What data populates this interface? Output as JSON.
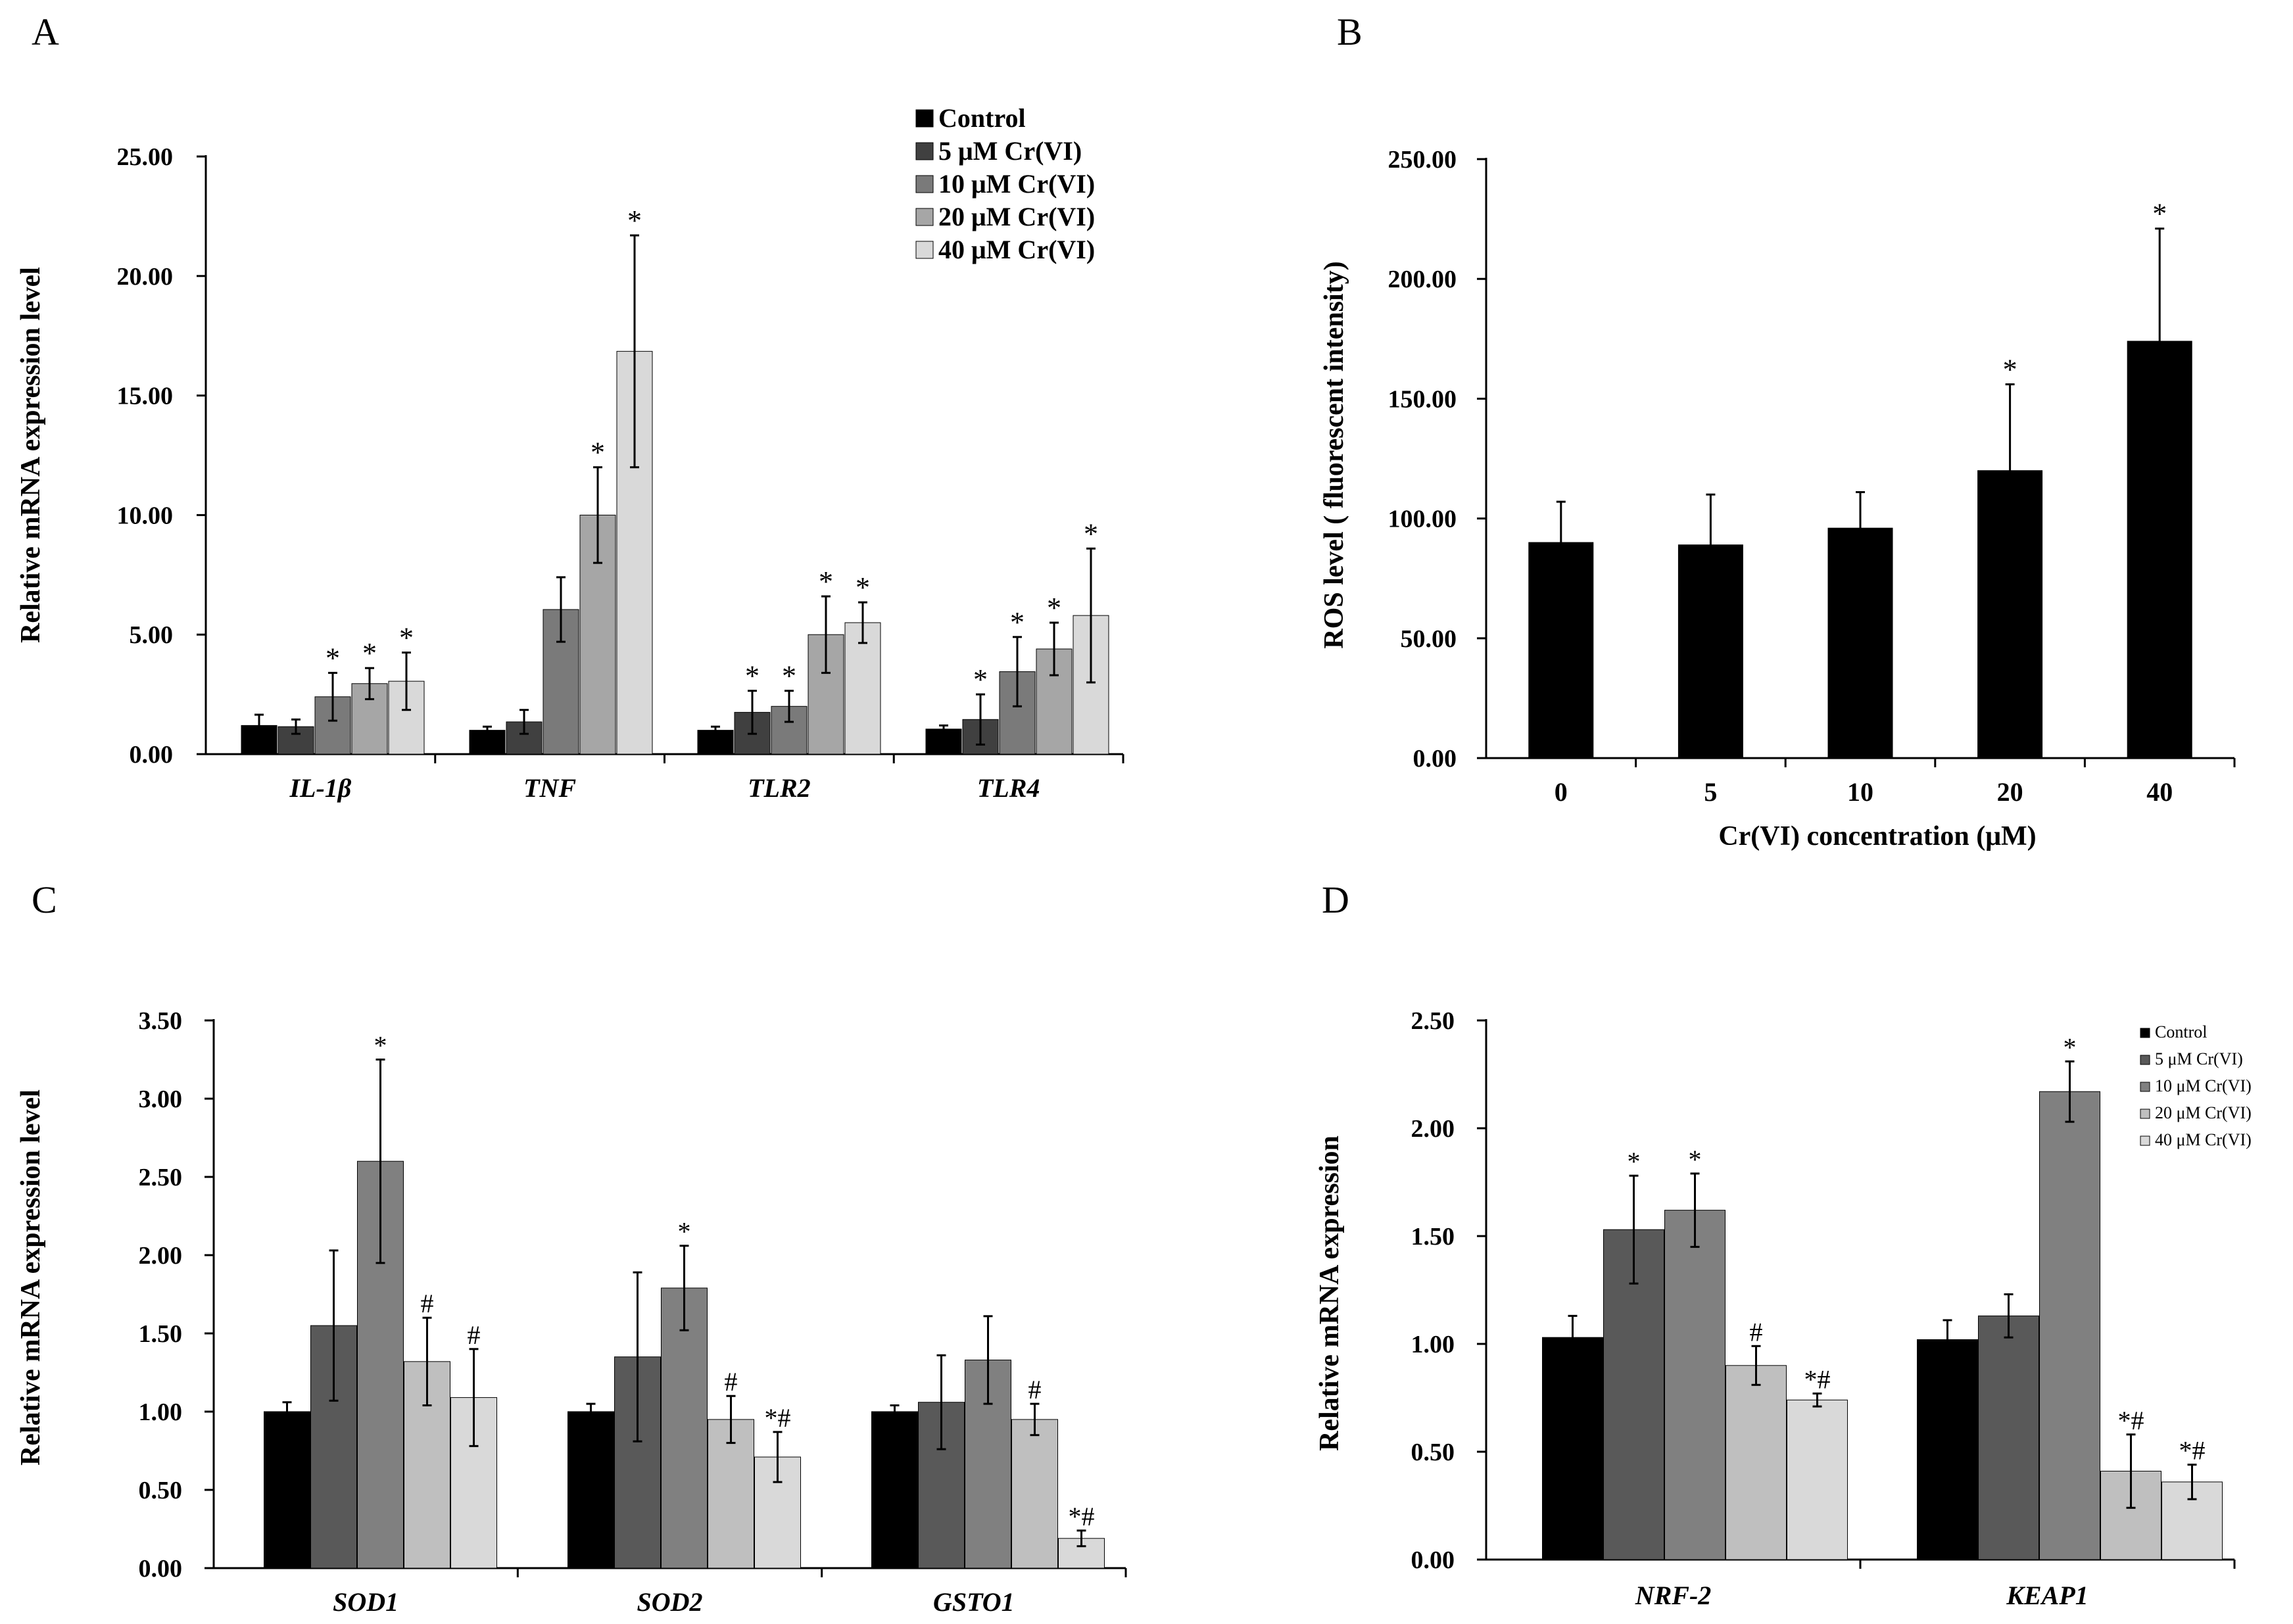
{
  "panels": [
    "A",
    "B",
    "C",
    "D"
  ],
  "chart_data": [
    {
      "panel": "A",
      "type": "bar",
      "title": "",
      "xlabel": "",
      "ylabel": "Relative mRNA expression level",
      "ylim": [
        0,
        25
      ],
      "yticks": [
        "0.00",
        "5.00",
        "10.00",
        "15.00",
        "20.00",
        "25.00"
      ],
      "categories": [
        "IL-1β",
        "TNF",
        "TLR2",
        "TLR4"
      ],
      "legend_position": "top-right",
      "series": [
        {
          "name": "Control",
          "color": "#000000",
          "values": [
            1.2,
            1.0,
            1.0,
            1.05
          ],
          "errors": [
            0.45,
            0.15,
            0.15,
            0.15
          ],
          "marks": [
            "",
            "",
            "",
            ""
          ]
        },
        {
          "name": "5 μM Cr(VI)",
          "color": "#404040",
          "values": [
            1.15,
            1.35,
            1.75,
            1.45
          ],
          "errors": [
            0.3,
            0.5,
            0.9,
            1.05
          ],
          "marks": [
            "",
            "",
            "*",
            "*"
          ]
        },
        {
          "name": "10 μM Cr(VI)",
          "color": "#7a7a7a",
          "values": [
            2.4,
            6.05,
            2.0,
            3.45
          ],
          "errors": [
            1.0,
            1.35,
            0.65,
            1.45
          ],
          "marks": [
            "*",
            "",
            "*",
            "*"
          ]
        },
        {
          "name": "20 μM Cr(VI)",
          "color": "#a6a6a6",
          "values": [
            2.95,
            10.0,
            5.0,
            4.4
          ],
          "errors": [
            0.65,
            2.0,
            1.6,
            1.1
          ],
          "marks": [
            "*",
            "*",
            "*",
            "*"
          ]
        },
        {
          "name": "40 μM Cr(VI)",
          "color": "#d9d9d9",
          "values": [
            3.05,
            16.85,
            5.5,
            5.8
          ],
          "errors": [
            1.2,
            4.85,
            0.85,
            2.8
          ],
          "marks": [
            "*",
            "*",
            "*",
            "*"
          ]
        }
      ]
    },
    {
      "panel": "B",
      "type": "bar",
      "title": "",
      "xlabel": "Cr(VI) concentration (μM)",
      "ylabel": "ROS level ( fluorescent intensity)",
      "ylim": [
        0,
        250
      ],
      "yticks": [
        "0.00",
        "50.00",
        "100.00",
        "150.00",
        "200.00",
        "250.00"
      ],
      "categories": [
        "0",
        "5",
        "10",
        "20",
        "40"
      ],
      "series": [
        {
          "name": "",
          "color": "#000000",
          "values": [
            90,
            89,
            96,
            120,
            174
          ],
          "errors": [
            17,
            21,
            15,
            36,
            47
          ],
          "marks": [
            "",
            "",
            "",
            "*",
            "*"
          ]
        }
      ]
    },
    {
      "panel": "C",
      "type": "bar",
      "title": "",
      "xlabel": "",
      "ylabel": "Relative mRNA expression level",
      "ylim": [
        0,
        3.5
      ],
      "yticks": [
        "0.00",
        "0.50",
        "1.00",
        "1.50",
        "2.00",
        "2.50",
        "3.00",
        "3.50"
      ],
      "categories": [
        "SOD1",
        "SOD2",
        "GSTO1"
      ],
      "series": [
        {
          "name": "Control",
          "color": "#000000",
          "values": [
            1.0,
            1.0,
            1.0
          ],
          "errors": [
            0.06,
            0.05,
            0.04
          ],
          "marks": [
            "",
            "",
            ""
          ]
        },
        {
          "name": "5 μM Cr(VI)",
          "color": "#595959",
          "values": [
            1.55,
            1.35,
            1.06
          ],
          "errors": [
            0.48,
            0.54,
            0.3
          ],
          "marks": [
            "",
            "",
            ""
          ]
        },
        {
          "name": "10 μM Cr(VI)",
          "color": "#808080",
          "values": [
            2.6,
            1.79,
            1.33
          ],
          "errors": [
            0.65,
            0.27,
            0.28
          ],
          "marks": [
            "*",
            "*",
            ""
          ]
        },
        {
          "name": "20 μM Cr(VI)",
          "color": "#bfbfbf",
          "values": [
            1.32,
            0.95,
            0.95
          ],
          "errors": [
            0.28,
            0.15,
            0.1
          ],
          "marks": [
            "#",
            "#",
            "#"
          ]
        },
        {
          "name": "40 μM Cr(VI)",
          "color": "#d9d9d9",
          "values": [
            1.09,
            0.71,
            0.19
          ],
          "errors": [
            0.31,
            0.16,
            0.05
          ],
          "marks": [
            "#",
            "*#",
            "*#"
          ]
        }
      ]
    },
    {
      "panel": "D",
      "type": "bar",
      "title": "",
      "xlabel": "",
      "ylabel": "Relative mRNA expression",
      "ylim": [
        0,
        2.5
      ],
      "yticks": [
        "0.00",
        "0.50",
        "1.00",
        "1.50",
        "2.00",
        "2.50"
      ],
      "categories": [
        "NRF-2",
        "KEAP1"
      ],
      "legend_position": "top-right",
      "series": [
        {
          "name": "Control",
          "color": "#000000",
          "values": [
            1.03,
            1.02
          ],
          "errors": [
            0.1,
            0.09
          ],
          "marks": [
            "",
            ""
          ]
        },
        {
          "name": "5 μM Cr(VI)",
          "color": "#595959",
          "values": [
            1.53,
            1.13
          ],
          "errors": [
            0.25,
            0.1
          ],
          "marks": [
            "*",
            ""
          ]
        },
        {
          "name": "10 μM Cr(VI)",
          "color": "#808080",
          "values": [
            1.62,
            2.17
          ],
          "errors": [
            0.17,
            0.14
          ],
          "marks": [
            "*",
            "*"
          ]
        },
        {
          "name": "20 μM Cr(VI)",
          "color": "#bfbfbf",
          "values": [
            0.9,
            0.41
          ],
          "errors": [
            0.09,
            0.17
          ],
          "marks": [
            "#",
            "*#"
          ]
        },
        {
          "name": "40 μM Cr(VI)",
          "color": "#d9d9d9",
          "values": [
            0.74,
            0.36
          ],
          "errors": [
            0.03,
            0.08
          ],
          "marks": [
            "*#",
            "*#"
          ]
        }
      ]
    }
  ]
}
